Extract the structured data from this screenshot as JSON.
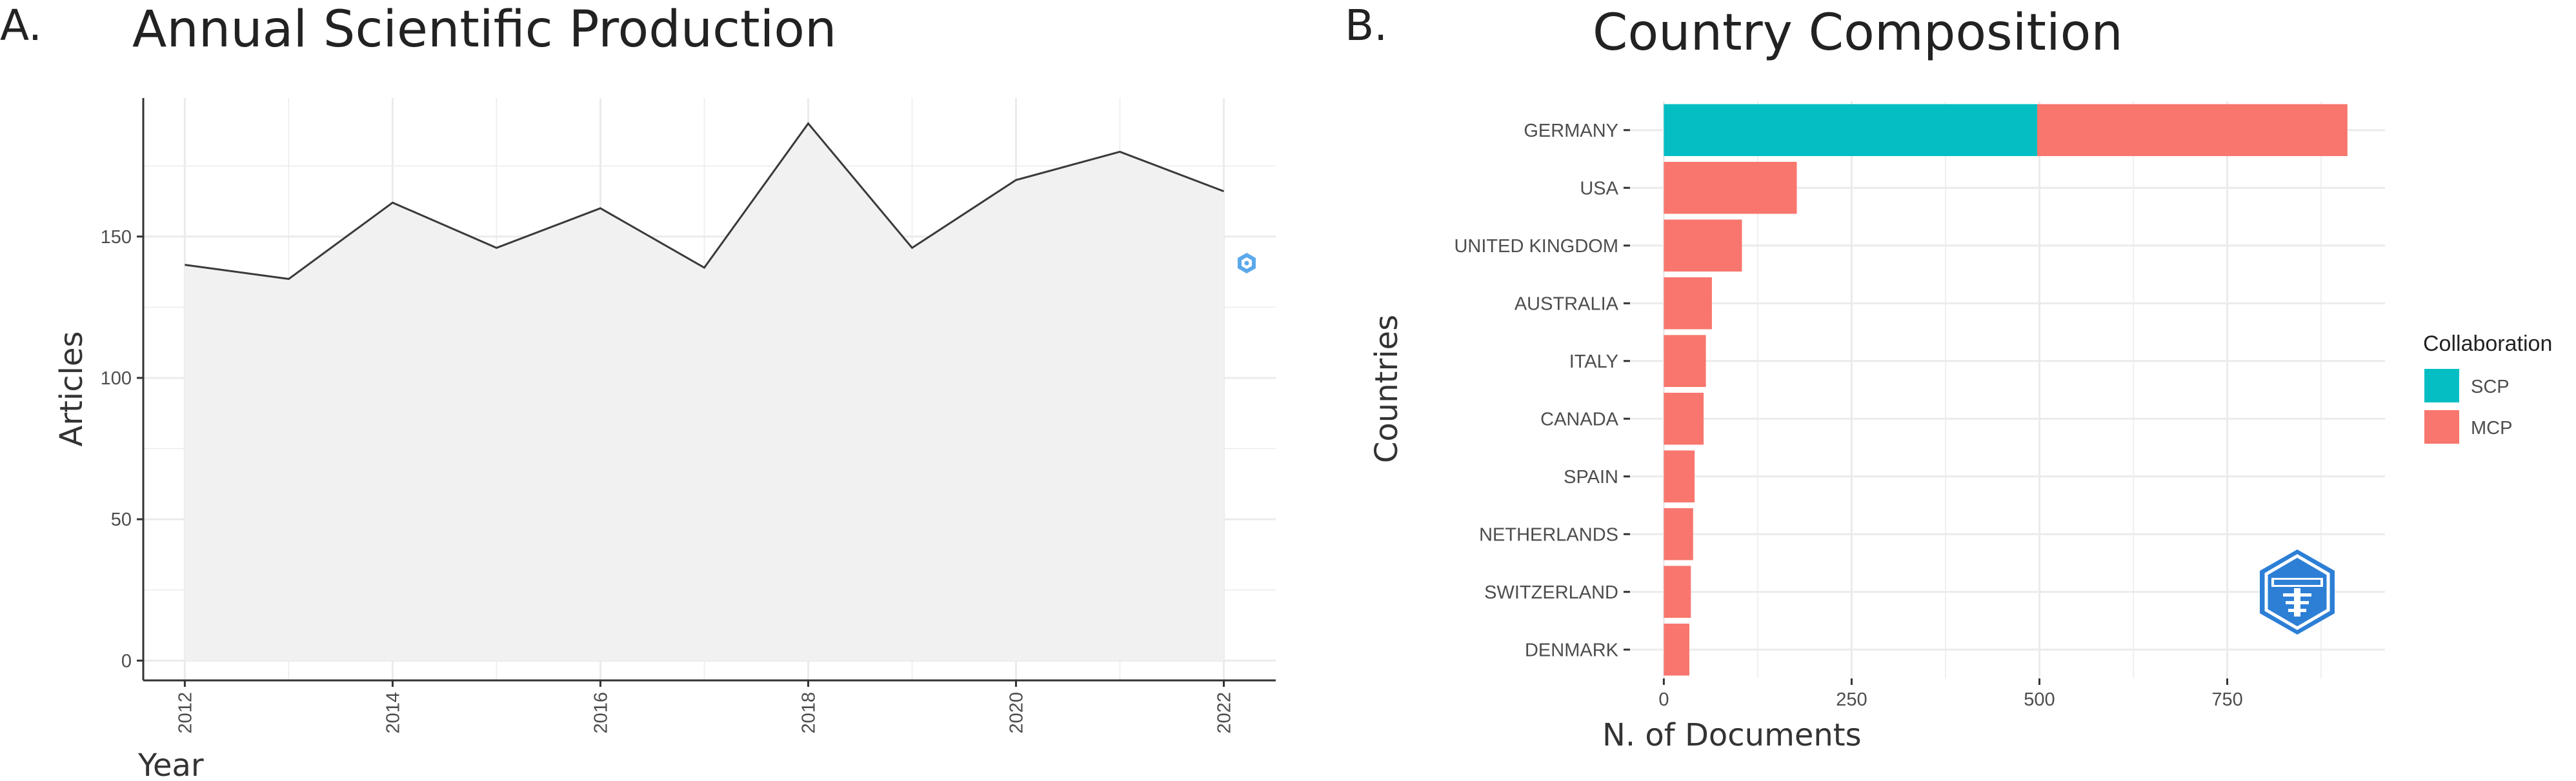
{
  "panel_a": {
    "letter": "A."
  },
  "panel_b": {
    "letter": "B."
  },
  "colors": {
    "scp": "#04BEC3",
    "mcp": "#F8766D",
    "line": "#3a3a3a",
    "area_fill": "#f1f1f1",
    "grid": "#ebebeb",
    "axis": "#333333"
  },
  "chart_data": [
    {
      "type": "area",
      "title": "Annual Scientific Production",
      "xlabel": "Year",
      "ylabel": "Articles",
      "x": [
        2012,
        2013,
        2014,
        2015,
        2016,
        2017,
        2018,
        2019,
        2020,
        2021,
        2022
      ],
      "y": [
        140,
        135,
        162,
        146,
        160,
        139,
        190,
        146,
        170,
        180,
        166
      ],
      "xlim": [
        2011.6,
        2022.5
      ],
      "ylim": [
        -7,
        199
      ],
      "x_ticks": [
        2012,
        2014,
        2016,
        2018,
        2020,
        2022
      ],
      "y_ticks": [
        0,
        50,
        100,
        150
      ],
      "grid": true,
      "watermark_icon": "bibliometrix-logo-icon"
    },
    {
      "type": "bar",
      "orientation": "horizontal",
      "stacked": true,
      "title": "Country Composition",
      "xlabel": "N. of Documents",
      "ylabel": "Countries",
      "categories": [
        "GERMANY",
        "USA",
        "UNITED KINGDOM",
        "AUSTRALIA",
        "ITALY",
        "CANADA",
        "SPAIN",
        "NETHERLANDS",
        "SWITZERLAND",
        "DENMARK"
      ],
      "series": [
        {
          "name": "SCP",
          "values": [
            497,
            0,
            0,
            0,
            0,
            0,
            0,
            0,
            0,
            0
          ]
        },
        {
          "name": "MCP",
          "values": [
            413,
            177,
            104,
            64,
            56,
            53,
            41,
            39,
            36,
            34
          ]
        }
      ],
      "xlim": [
        -45,
        960
      ],
      "x_ticks": [
        0,
        250,
        500,
        750
      ],
      "grid": true,
      "legend": {
        "title": "Collaboration",
        "position": "right"
      },
      "watermark_icon": "bibliometrix-logo-icon"
    }
  ]
}
